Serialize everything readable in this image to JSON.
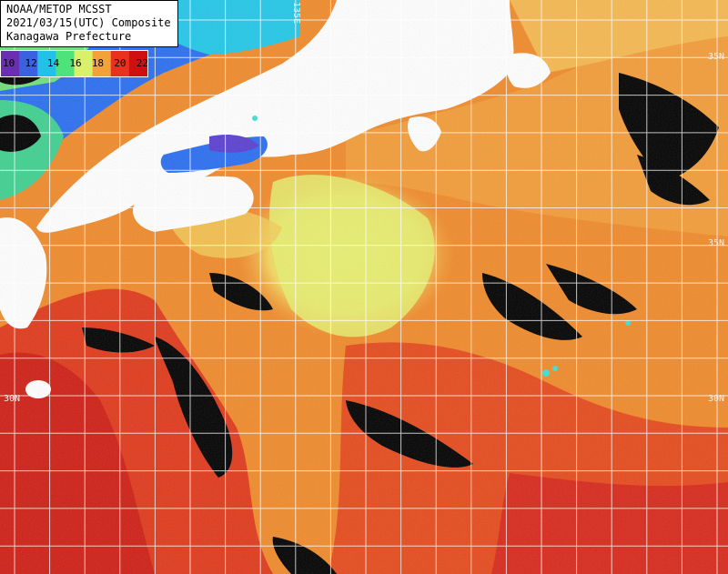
{
  "header": {
    "line1": "NOAA/METOP MCSST",
    "line2": "2021/03/15(UTC) Composite",
    "line3": "Kanagawa Prefecture"
  },
  "legend": {
    "labels": [
      "10",
      "12",
      "14",
      "16",
      "18",
      "20",
      "22"
    ],
    "colors": [
      "#6a2fb0",
      "#3a62e0",
      "#23c0e8",
      "#4de27a",
      "#d8f06a",
      "#f3a23a",
      "#e8321e",
      "#d01010"
    ]
  },
  "grid": {
    "lat_labels": [
      "30N",
      "30N",
      "35N",
      "35N"
    ],
    "lon_labels": [
      "135E"
    ]
  },
  "palette": {
    "land": "#ffffff",
    "cloud": "#000000",
    "cold": "#2a6ef0",
    "cool": "#22c7e8",
    "mild": "#6fe07a",
    "yellow": "#e8f06a",
    "orange": "#f3902a",
    "red": "#e53a16",
    "deep_red": "#c81a12",
    "grid": "#ffffff"
  }
}
